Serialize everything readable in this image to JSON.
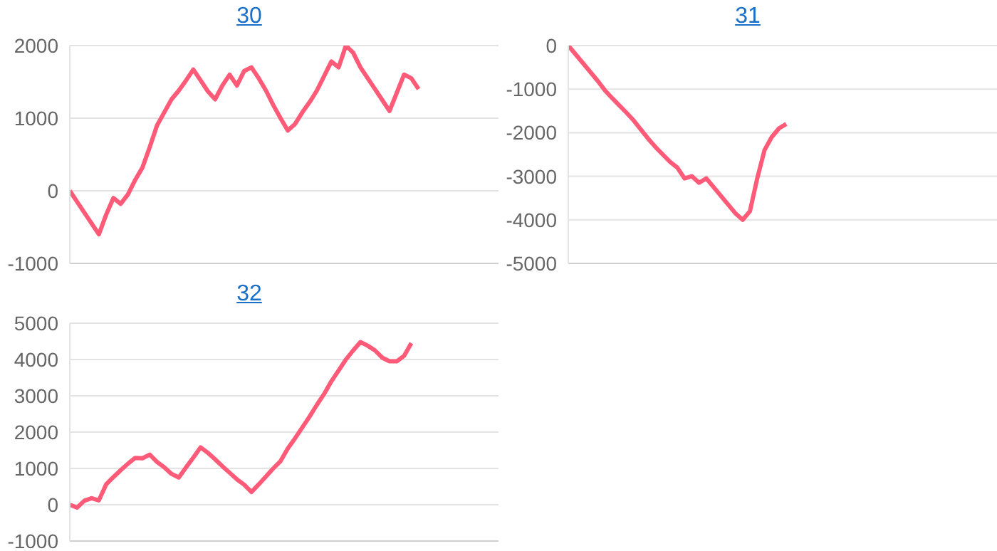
{
  "chart_data": [
    {
      "type": "line",
      "title": "30",
      "categories": [
        null,
        null,
        null,
        null,
        null,
        null,
        null,
        null,
        null,
        null,
        null,
        null,
        null,
        null,
        null,
        null,
        null,
        null,
        null,
        null,
        null,
        null,
        null,
        null,
        null,
        null,
        null,
        null,
        null,
        null,
        null,
        null,
        null,
        null,
        null,
        null,
        null,
        null,
        null,
        null,
        null,
        null,
        null,
        null,
        null,
        null,
        null,
        null,
        null,
        null,
        null,
        null,
        null,
        null,
        null,
        null,
        null,
        null,
        null,
        null
      ],
      "series": [
        {
          "color": "#ff5a78",
          "values": [
            0,
            -150,
            -300,
            -450,
            -600,
            -330,
            -100,
            -180,
            -50,
            150,
            320,
            600,
            900,
            1080,
            1260,
            1380,
            1520,
            1670,
            1520,
            1370,
            1260,
            1450,
            1600,
            1450,
            1650,
            1700,
            1550,
            1380,
            1180,
            1000,
            830,
            920,
            1080,
            1220,
            1380,
            1580,
            1780,
            1700,
            2000,
            1900,
            1700,
            1550,
            1400,
            1250,
            1100,
            1350,
            1600,
            1550,
            1400,
            null,
            null,
            null,
            null,
            null,
            null,
            null,
            null,
            null,
            null,
            null
          ]
        }
      ],
      "ylim": [
        -1000,
        2000
      ],
      "yticks": [
        -1000,
        0,
        1000,
        2000
      ],
      "grid": "y",
      "tick_labels": "y",
      "marker": "none",
      "line_style": "solid",
      "legend": false
    },
    {
      "type": "line",
      "title": "31",
      "categories": [
        null,
        null,
        null,
        null,
        null,
        null,
        null,
        null,
        null,
        null,
        null,
        null,
        null,
        null,
        null,
        null,
        null,
        null,
        null,
        null,
        null,
        null,
        null,
        null,
        null,
        null,
        null,
        null,
        null,
        null,
        null,
        null,
        null,
        null,
        null,
        null,
        null,
        null,
        null,
        null,
        null,
        null,
        null,
        null,
        null,
        null,
        null,
        null,
        null,
        null,
        null,
        null,
        null,
        null,
        null,
        null,
        null,
        null,
        null,
        null
      ],
      "series": [
        {
          "color": "#ff5a78",
          "values": [
            0,
            -200,
            -400,
            -600,
            -800,
            -1020,
            -1200,
            -1370,
            -1540,
            -1720,
            -1930,
            -2140,
            -2330,
            -2500,
            -2670,
            -2800,
            -3050,
            -3000,
            -3150,
            -3050,
            -3250,
            -3450,
            -3650,
            -3850,
            -4000,
            -3800,
            -3050,
            -2400,
            -2100,
            -1900,
            -1800,
            null,
            null,
            null,
            null,
            null,
            null,
            null,
            null,
            null,
            null,
            null,
            null,
            null,
            null,
            null,
            null,
            null,
            null,
            null,
            null,
            null,
            null,
            null,
            null,
            null,
            null,
            null,
            null,
            null
          ]
        }
      ],
      "ylim": [
        -5000,
        0
      ],
      "yticks": [
        -5000,
        -4000,
        -3000,
        -2000,
        -1000,
        0
      ],
      "grid": "y",
      "tick_labels": "y",
      "marker": "none",
      "line_style": "solid",
      "legend": false
    },
    {
      "type": "line",
      "title": "32",
      "categories": [
        null,
        null,
        null,
        null,
        null,
        null,
        null,
        null,
        null,
        null,
        null,
        null,
        null,
        null,
        null,
        null,
        null,
        null,
        null,
        null,
        null,
        null,
        null,
        null,
        null,
        null,
        null,
        null,
        null,
        null,
        null,
        null,
        null,
        null,
        null,
        null,
        null,
        null,
        null,
        null,
        null,
        null,
        null,
        null,
        null,
        null,
        null,
        null,
        null,
        null,
        null,
        null,
        null,
        null,
        null,
        null,
        null,
        null,
        null,
        null
      ],
      "series": [
        {
          "color": "#ff5a78",
          "values": [
            0,
            -80,
            110,
            180,
            120,
            560,
            760,
            950,
            1130,
            1290,
            1280,
            1380,
            1180,
            1030,
            850,
            750,
            1030,
            1300,
            1580,
            1430,
            1250,
            1060,
            880,
            700,
            550,
            350,
            560,
            780,
            1000,
            1200,
            1550,
            1830,
            2130,
            2430,
            2750,
            3050,
            3400,
            3700,
            4000,
            4250,
            4480,
            4380,
            4250,
            4050,
            3950,
            3950,
            4100,
            4450,
            null,
            null,
            null,
            null,
            null,
            null,
            null,
            null,
            null,
            null,
            null,
            null
          ]
        }
      ],
      "ylim": [
        -1000,
        5000
      ],
      "yticks": [
        -1000,
        0,
        1000,
        2000,
        3000,
        4000,
        5000
      ],
      "grid": "y",
      "tick_labels": "y",
      "marker": "none",
      "line_style": "solid",
      "legend": false
    }
  ]
}
